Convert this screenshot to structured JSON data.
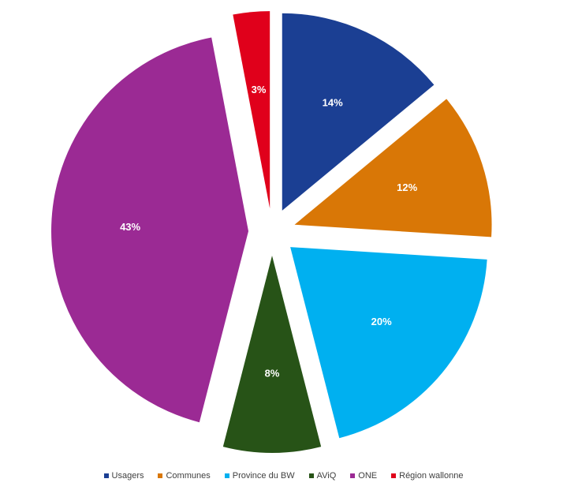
{
  "chart_data": {
    "type": "pie",
    "title": "",
    "legend_position": "bottom",
    "slices": [
      {
        "name": "Usagers",
        "value": 14,
        "label": "14%",
        "color": "#1B3F93"
      },
      {
        "name": "Communes",
        "value": 12,
        "label": "12%",
        "color": "#D97706"
      },
      {
        "name": "Province du BW",
        "value": 20,
        "label": "20%",
        "color": "#00B0F0"
      },
      {
        "name": "AViQ",
        "value": 8,
        "label": "8%",
        "color": "#275317"
      },
      {
        "name": "ONE",
        "value": 43,
        "label": "43%",
        "color": "#9B2A94"
      },
      {
        "name": "Région wallonne",
        "value": 3,
        "label": "3%",
        "color": "#E0001B"
      }
    ],
    "exploded": true
  }
}
